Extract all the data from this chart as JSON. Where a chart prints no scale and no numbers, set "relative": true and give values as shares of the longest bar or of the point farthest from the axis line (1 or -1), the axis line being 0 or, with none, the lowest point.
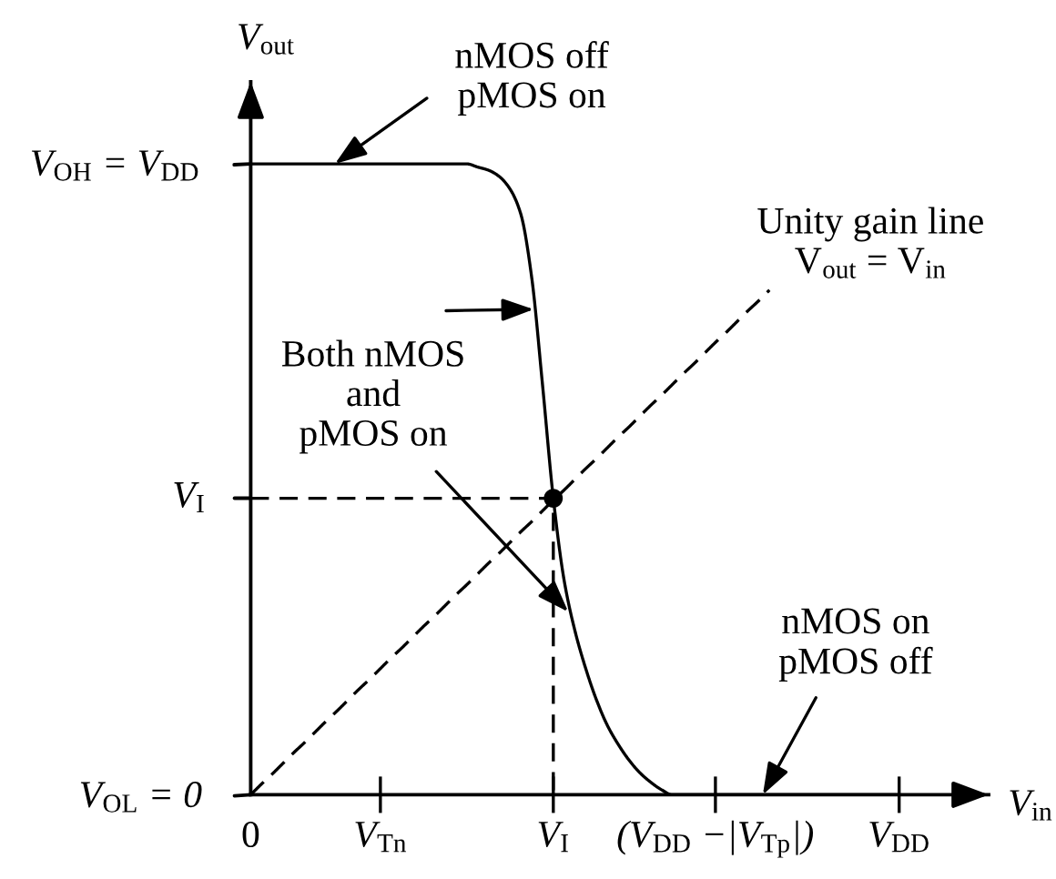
{
  "chart_data": {
    "type": "line",
    "relative": true,
    "xlabel": "V$_{in}$",
    "ylabel": "V$_{out}$",
    "categories": [
      "0",
      null,
      null,
      null,
      null,
      null,
      null,
      null,
      null,
      null,
      null,
      null,
      "V$_{Tn}$",
      null,
      null,
      null,
      null,
      null,
      null,
      null,
      null,
      null,
      null,
      null,
      null,
      null,
      null,
      null,
      "V$_{I}$",
      null,
      null,
      null,
      null,
      null,
      null,
      null,
      null,
      null,
      null,
      null,
      null,
      null,
      null,
      "(V$_{DD}$ −|V$_{Tp}$|)",
      null,
      null,
      null,
      null,
      null,
      null,
      null,
      null,
      null,
      null,
      null,
      null,
      null,
      null,
      null,
      null,
      "V$_{DD}$"
    ],
    "series": [
      {
        "color": "#000000",
        "values": [
          1,
          1,
          1,
          1,
          1,
          1,
          1,
          1,
          1,
          1,
          1,
          1,
          1,
          1,
          1,
          1,
          1,
          1,
          1,
          1,
          1,
          0.995,
          0.99,
          0.98,
          0.96,
          0.92,
          0.82,
          0.65,
          0.47,
          0.34,
          0.26,
          0.2,
          0.15,
          0.11,
          0.08,
          0.055,
          0.035,
          0.02,
          0.008,
          0,
          0,
          0,
          0,
          0,
          0,
          0,
          0,
          0,
          0,
          0,
          0,
          0,
          0,
          0,
          0,
          0,
          0,
          0,
          0,
          0,
          0
        ]
      },
      {
        "color": "#000000",
        "line_style": "dashed",
        "name": "Unity gain line\nV$_{out}$ = V$_{in}$",
        "values": [
          0,
          0.017,
          0.033,
          0.05,
          0.067,
          0.083,
          0.1,
          0.117,
          0.133,
          0.15,
          0.167,
          0.183,
          0.2,
          0.217,
          0.233,
          0.25,
          0.267,
          0.283,
          0.3,
          0.317,
          0.333,
          0.35,
          0.367,
          0.383,
          0.4,
          0.417,
          0.433,
          0.45,
          0.467,
          0.483,
          0.5,
          0.517,
          0.533,
          0.55,
          0.567,
          0.583,
          0.6,
          0.617,
          0.633,
          0.65,
          0.667,
          0.683,
          0.7,
          0.717,
          0.733,
          0.75,
          0.767,
          0.783,
          0.8,
          null,
          null,
          null,
          null,
          null,
          null,
          null,
          null,
          null,
          null,
          null,
          null
        ]
      },
      {
        "color": "#000000",
        "line_style": "dashed",
        "x": [
          "0",
          "V$_{I}$",
          "V$_{I}$"
        ],
        "values": [
          0.47,
          0.47,
          0
        ]
      },
      {
        "type": "scatter",
        "color": "#000000",
        "marker": "circle",
        "x": [
          "V$_{I}$"
        ],
        "values": [
          0.47
        ]
      }
    ],
    "annotations": [
      {
        "text": "V$_{OH}$ = V$_{DD}$",
        "x": "0",
        "y": 1
      },
      "nMOS off\npMOS on",
      "Both nMOS\nand\npMOS on",
      {
        "text": "V$_{I}$",
        "x": "0",
        "y": 0.47
      },
      {
        "text": "nMOS on\npMOS off",
        "y": 0
      },
      {
        "text": "V$_{OL}$ = 0",
        "x": "0",
        "y": 0
      }
    ]
  }
}
